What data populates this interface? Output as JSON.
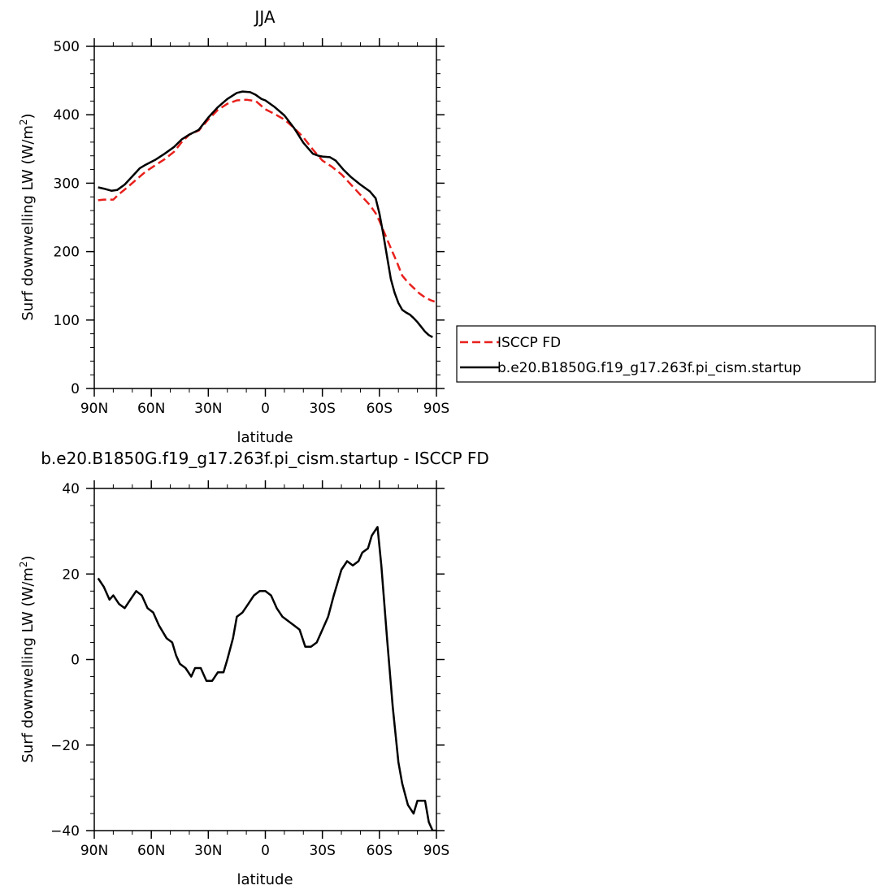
{
  "chart_data": [
    {
      "type": "line",
      "title": "JJA",
      "xlabel": "latitude",
      "ylabel": "Surf downwelling LW (W/m",
      "ylabel_sup": "2",
      "ylabel_close": ")",
      "xlim": [
        90,
        -90
      ],
      "ylim": [
        0,
        500
      ],
      "xticks": [
        90,
        60,
        30,
        0,
        -30,
        -60,
        -90
      ],
      "xticklabels": [
        "90N",
        "60N",
        "30N",
        "0",
        "30S",
        "60S",
        "90S"
      ],
      "yticks": [
        0,
        100,
        200,
        300,
        400,
        500
      ],
      "yticklabels": [
        "0",
        "100",
        "200",
        "300",
        "400",
        "500"
      ],
      "legend": {
        "placement": "right"
      },
      "series": [
        {
          "name": "ISCCP FD",
          "color": "#e8201c",
          "dash": "dashed",
          "x": [
            88,
            85,
            80,
            77,
            73,
            68,
            63,
            58,
            53,
            48,
            44,
            40,
            35,
            30,
            25,
            20,
            15,
            10,
            5,
            0,
            -5,
            -10,
            -15,
            -20,
            -25,
            -30,
            -35,
            -40,
            -45,
            -50,
            -55,
            -58,
            -60,
            -63,
            -66,
            -69,
            -72,
            -75,
            -78,
            -81,
            -84,
            -87,
            -89
          ],
          "y": [
            275,
            276,
            276,
            284,
            293,
            305,
            317,
            326,
            335,
            346,
            360,
            371,
            377,
            393,
            407,
            416,
            421,
            422,
            420,
            408,
            401,
            393,
            381,
            367,
            349,
            333,
            324,
            313,
            298,
            283,
            268,
            256,
            245,
            225,
            205,
            186,
            165,
            155,
            147,
            139,
            133,
            129,
            127
          ]
        },
        {
          "name": "b.e20.B1850G.f19_g17.263f.pi_cism.startup",
          "color": "#000000",
          "dash": "solid",
          "x": [
            88,
            85,
            81,
            78,
            74,
            70,
            66,
            63,
            58,
            53,
            48,
            44,
            40,
            35,
            30,
            25,
            20,
            15,
            12,
            8,
            5,
            2,
            0,
            -5,
            -10,
            -15,
            -20,
            -25,
            -28,
            -30,
            -34,
            -37,
            -41,
            -45,
            -50,
            -55,
            -58,
            -60,
            -62,
            -64,
            -66,
            -68,
            -70,
            -72,
            -74,
            -76,
            -78,
            -80,
            -82,
            -84,
            -86,
            -88
          ],
          "y": [
            294,
            292,
            289,
            290,
            298,
            310,
            322,
            327,
            334,
            343,
            353,
            364,
            371,
            378,
            396,
            411,
            423,
            432,
            434,
            433,
            429,
            423,
            421,
            411,
            399,
            381,
            359,
            343,
            340,
            339,
            338,
            333,
            320,
            309,
            298,
            288,
            278,
            256,
            226,
            193,
            160,
            140,
            125,
            115,
            111,
            108,
            103,
            97,
            90,
            83,
            78,
            75
          ]
        }
      ]
    },
    {
      "type": "line",
      "title": "b.e20.B1850G.f19_g17.263f.pi_cism.startup - ISCCP FD",
      "xlabel": "latitude",
      "ylabel": "Surf downwelling LW (W/m",
      "ylabel_sup": "2",
      "ylabel_close": ")",
      "xlim": [
        90,
        -90
      ],
      "ylim": [
        -40,
        40
      ],
      "xticks": [
        90,
        60,
        30,
        0,
        -30,
        -60,
        -90
      ],
      "xticklabels": [
        "90N",
        "60N",
        "30N",
        "0",
        "30S",
        "60S",
        "90S"
      ],
      "yticks": [
        -40,
        -20,
        0,
        20,
        40
      ],
      "yticklabels": [
        "−40",
        "−20",
        "0",
        "20",
        "40"
      ],
      "series": [
        {
          "color": "#000000",
          "dash": "solid",
          "x": [
            88,
            85,
            82,
            80,
            77,
            74,
            71,
            68,
            65,
            62,
            59,
            56,
            52,
            49,
            47,
            45,
            42,
            39,
            37,
            34,
            31,
            28,
            25,
            22,
            20,
            17,
            15,
            12,
            9,
            6,
            3,
            0,
            -3,
            -6,
            -9,
            -12,
            -15,
            -18,
            -21,
            -24,
            -27,
            -30,
            -33,
            -36,
            -38,
            -40,
            -43,
            -46,
            -49,
            -51,
            -54,
            -56,
            -59,
            -61,
            -64,
            -67,
            -70,
            -72,
            -75,
            -78,
            -80,
            -82,
            -84,
            -86,
            -88,
            -90
          ],
          "y": [
            19,
            17,
            14,
            15,
            13,
            12,
            14,
            16,
            15,
            12,
            11,
            8,
            5,
            4,
            1,
            -1,
            -2,
            -4,
            -2,
            -2,
            -5,
            -5,
            -3,
            -3,
            0,
            5,
            10,
            11,
            13,
            15,
            16,
            16,
            15,
            12,
            10,
            9,
            8,
            7,
            3,
            3,
            4,
            7,
            10,
            15,
            18,
            21,
            23,
            22,
            23,
            25,
            26,
            29,
            31,
            22,
            5,
            -11,
            -24,
            -29,
            -34,
            -36,
            -33,
            -33,
            -33,
            -38,
            -40,
            -40
          ]
        }
      ]
    }
  ]
}
